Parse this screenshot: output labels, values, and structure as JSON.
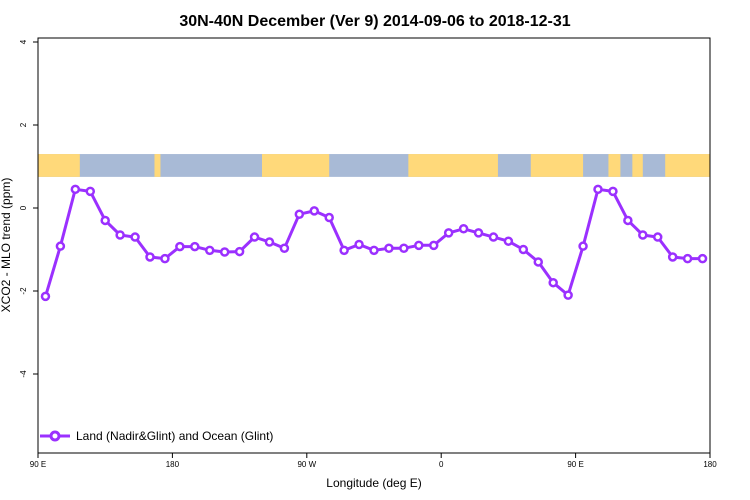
{
  "chart_data": {
    "type": "line",
    "title": "30N-40N December (Ver 9)   2014-09-06 to 2018-12-31",
    "xlabel": "Longitude (deg E)",
    "ylabel": "XCO2 - MLO trend (ppm)",
    "xlim": [
      90,
      540
    ],
    "ylim": [
      -6,
      4
    ],
    "x_ticks": [
      {
        "value": 90,
        "label": "90 E"
      },
      {
        "value": 180,
        "label": "180"
      },
      {
        "value": 270,
        "label": "90 W"
      },
      {
        "value": 360,
        "label": "0"
      },
      {
        "value": 450,
        "label": "90 E"
      },
      {
        "value": 540,
        "label": "180"
      }
    ],
    "y_ticks": [
      {
        "value": 4,
        "label": "4"
      },
      {
        "value": 2,
        "label": "2"
      },
      {
        "value": 0,
        "label": "0"
      },
      {
        "value": -2,
        "label": "-2"
      },
      {
        "value": -4,
        "label": "-4"
      }
    ],
    "grid": false,
    "legend_position": "bottom-left",
    "map_band": {
      "y_range": [
        0.75,
        1.3
      ],
      "land_color": "#ffd97a",
      "ocean_color": "#a8bad6"
    },
    "series": [
      {
        "name": "Land (Nadir&Glint) and Ocean (Glint)",
        "color": "#9b30ff",
        "x": [
          95,
          105,
          115,
          125,
          135,
          145,
          155,
          165,
          175,
          185,
          195,
          205,
          215,
          225,
          235,
          245,
          255,
          265,
          275,
          285,
          295,
          305,
          315,
          325,
          335,
          345,
          355,
          365,
          375,
          385,
          395,
          405,
          415,
          425,
          435,
          445,
          455,
          465,
          475,
          485,
          495,
          505,
          515,
          525,
          535
        ],
        "y": [
          -2.13,
          -0.92,
          0.45,
          0.4,
          -0.3,
          -0.65,
          -0.7,
          -1.18,
          -1.22,
          -0.93,
          -0.93,
          -1.02,
          -1.06,
          -1.05,
          -0.7,
          -0.82,
          -0.97,
          -0.15,
          -0.07,
          -0.23,
          -1.02,
          -0.88,
          -1.02,
          -0.97,
          -0.97,
          -0.9,
          -0.9,
          -0.6,
          -0.5,
          -0.6,
          -0.7,
          -0.8,
          -1.0,
          -1.3,
          -1.8,
          -2.1,
          -0.92,
          0.45,
          0.4,
          -0.3,
          -0.65,
          -0.7,
          -1.18,
          -1.22,
          -1.22
        ]
      }
    ]
  }
}
